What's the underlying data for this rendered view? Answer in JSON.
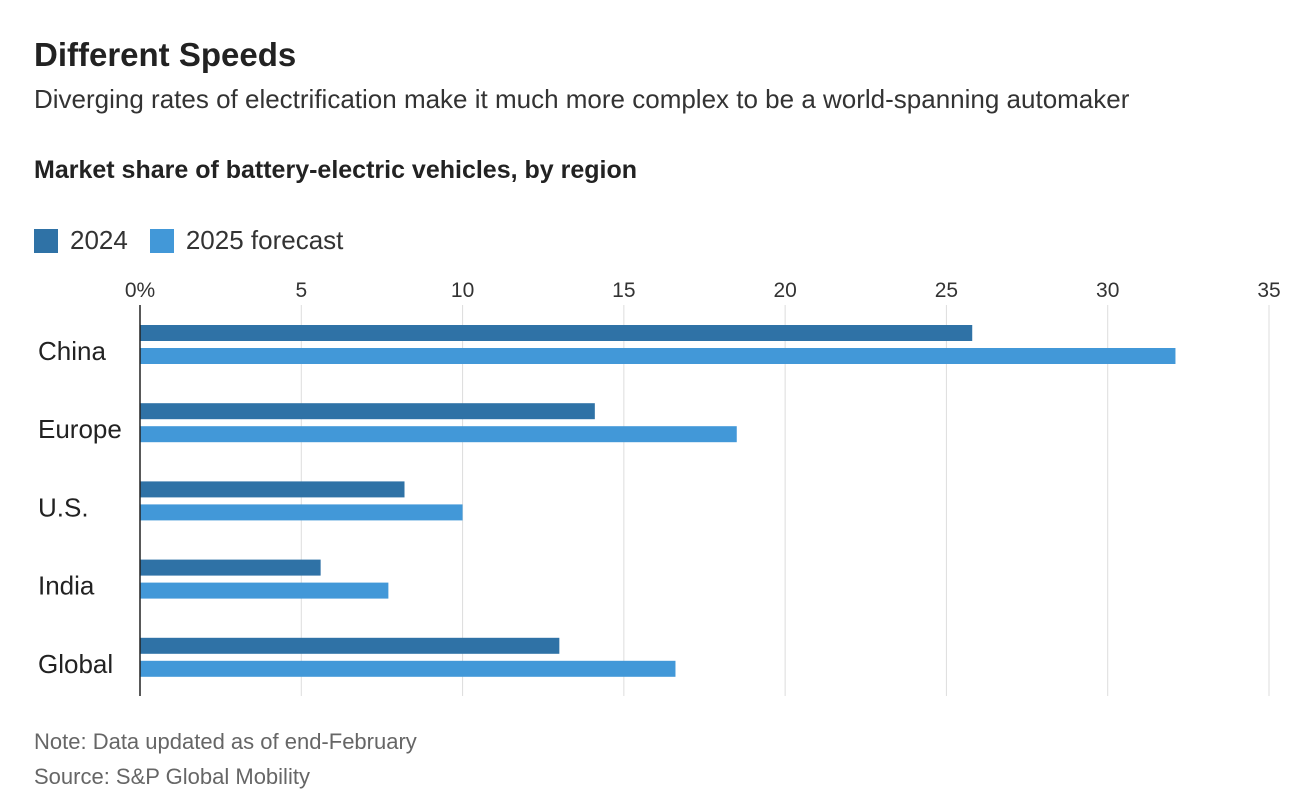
{
  "header": {
    "title": "Different Speeds",
    "subtitle": "Diverging rates of electrification make it much more complex to be a world-spanning automaker"
  },
  "colors": {
    "series_2024": "#2f72a6",
    "series_2025": "#4298d8",
    "grid": "#dddddd",
    "axis": "#222222"
  },
  "chart_data": {
    "type": "bar",
    "orientation": "horizontal",
    "title": "Market share of battery-electric vehicles, by region",
    "categories": [
      "China",
      "Europe",
      "U.S.",
      "India",
      "Global"
    ],
    "series": [
      {
        "name": "2024",
        "values": [
          25.8,
          14.1,
          8.2,
          5.6,
          13.0
        ]
      },
      {
        "name": "2025 forecast",
        "values": [
          32.1,
          18.5,
          10.0,
          7.7,
          16.6
        ]
      }
    ],
    "xlim": [
      0,
      35
    ],
    "x_ticks": [
      0,
      5,
      10,
      15,
      20,
      25,
      30,
      35
    ],
    "x_tick_labels": [
      "0%",
      "5",
      "10",
      "15",
      "20",
      "25",
      "30",
      "35"
    ],
    "grid": true,
    "legend": "top-left"
  },
  "footer": {
    "note": "Note: Data updated as of end-February",
    "source": "Source: S&P Global Mobility"
  }
}
